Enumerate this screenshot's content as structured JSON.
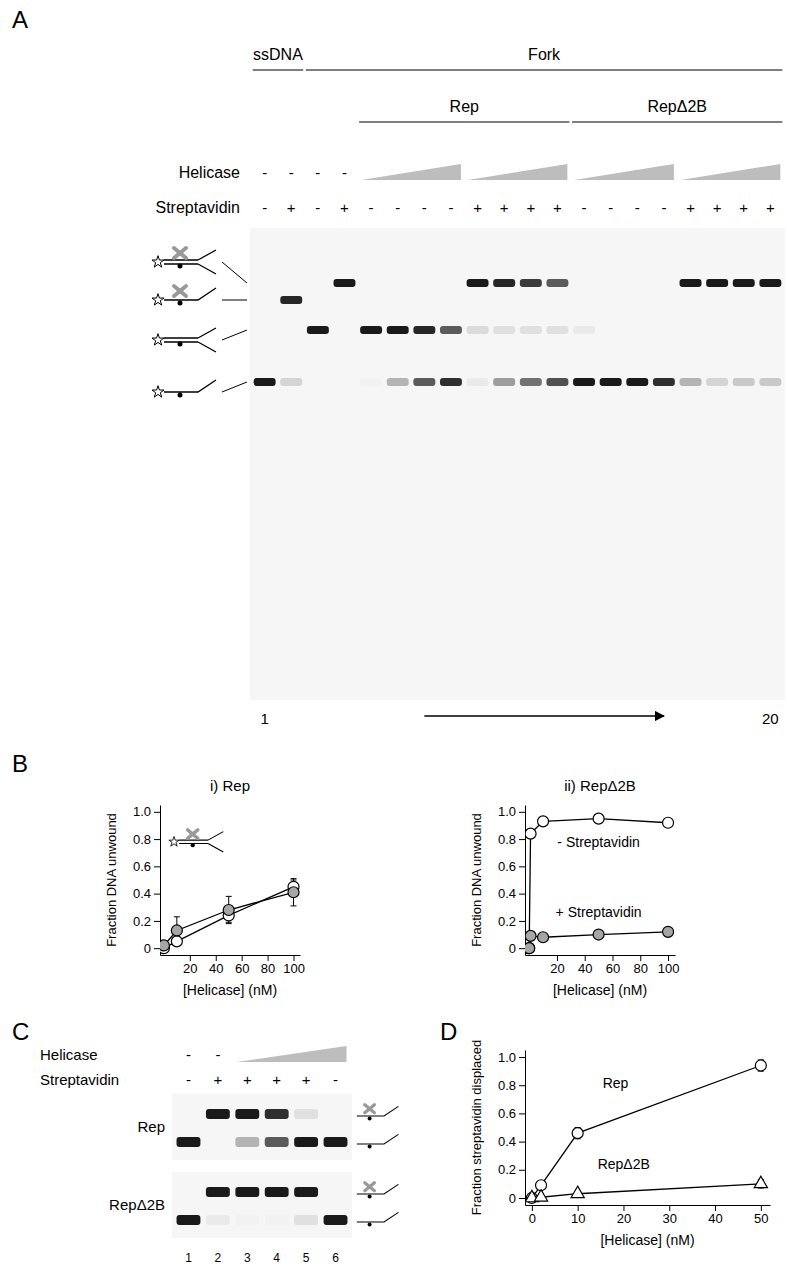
{
  "panel_labels": [
    "A",
    "B",
    "C",
    "D"
  ],
  "gel_a": {
    "headers": [
      {
        "text": "ssDNA",
        "lanes": [
          1,
          2
        ]
      },
      {
        "text": "Fork",
        "lanes": [
          3,
          20
        ]
      },
      {
        "text": "Rep",
        "lanes": [
          5,
          12
        ]
      },
      {
        "text": "RepΔ2B",
        "lanes": [
          13,
          20
        ]
      }
    ],
    "row_labels": [
      "Helicase",
      "Streptavidin"
    ],
    "helicase": [
      "-",
      "-",
      "-",
      "-"
    ],
    "helicase_ramps": [
      [
        5,
        8
      ],
      [
        9,
        12
      ],
      [
        13,
        16
      ],
      [
        17,
        20
      ]
    ],
    "streptavidin": [
      "-",
      "+",
      "-",
      "+",
      "-",
      "-",
      "-",
      "-",
      "+",
      "+",
      "+",
      "+",
      "-",
      "-",
      "-",
      "-",
      "+",
      "+",
      "+",
      "+"
    ],
    "bands": [
      [
        0,
        0,
        0,
        1
      ],
      [
        0,
        0.95,
        0,
        0.15
      ],
      [
        0,
        0,
        1,
        0
      ],
      [
        1,
        0,
        0,
        0
      ],
      [
        0,
        0,
        1,
        0.02
      ],
      [
        0,
        0,
        1,
        0.3
      ],
      [
        0,
        0,
        0.95,
        0.7
      ],
      [
        0,
        0,
        0.7,
        0.9
      ],
      [
        1,
        0,
        0.12,
        0.05
      ],
      [
        0.95,
        0,
        0.1,
        0.4
      ],
      [
        0.85,
        0,
        0.1,
        0.6
      ],
      [
        0.7,
        0,
        0.1,
        0.75
      ],
      [
        0,
        0,
        0.05,
        1
      ],
      [
        0,
        0,
        0,
        1
      ],
      [
        0,
        0,
        0,
        1
      ],
      [
        0,
        0,
        0,
        0.9
      ],
      [
        1,
        0,
        0,
        0.3
      ],
      [
        1,
        0,
        0,
        0.15
      ],
      [
        1,
        0,
        0,
        0.2
      ],
      [
        1,
        0,
        0,
        0.2
      ]
    ],
    "lane_numbers": [
      1,
      20
    ]
  },
  "gel_c": {
    "row_labels": [
      "Helicase",
      "Streptavidin"
    ],
    "helicase": [
      "-",
      "-"
    ],
    "helicase_ramp": [
      3,
      6
    ],
    "streptavidin": [
      "-",
      "+",
      "+",
      "+",
      "+",
      "-"
    ],
    "gels": [
      {
        "label": "Rep",
        "bands": [
          [
            0,
            1
          ],
          [
            1,
            0
          ],
          [
            1,
            0.3
          ],
          [
            0.9,
            0.7
          ],
          [
            0.1,
            1
          ],
          [
            0,
            1
          ]
        ]
      },
      {
        "label": "RepΔ2B",
        "bands": [
          [
            0,
            1
          ],
          [
            1,
            0.05
          ],
          [
            1,
            0.02
          ],
          [
            1,
            0.02
          ],
          [
            1,
            0.1
          ],
          [
            0,
            1
          ]
        ]
      }
    ],
    "lane_numbers": [
      1,
      2,
      3,
      4,
      5,
      6
    ]
  },
  "chart_data": [
    {
      "type": "line",
      "title": "i) Rep",
      "x_label": "[Helicase] (nM)",
      "y_label": "Fraction DNA unwound",
      "x": [
        0,
        10,
        50,
        100
      ],
      "xlim": [
        -3,
        105
      ],
      "xticks": [
        20,
        40,
        60,
        80,
        100
      ],
      "ylim": [
        -0.05,
        1.05
      ],
      "yticks": [
        0,
        0.2,
        0.4,
        0.6,
        0.8,
        {
          "value": 1,
          "label": "1.0"
        }
      ],
      "series": [
        {
          "color": "#ffffff",
          "marker": "circle",
          "values": [
            0,
            0.05,
            0.24,
            0.45
          ],
          "errors": [
            0,
            0.03,
            0.05,
            0.05
          ]
        },
        {
          "color": "#a6a6a6",
          "marker": "circle",
          "values": [
            0.02,
            0.13,
            0.28,
            0.41
          ],
          "errors": [
            0,
            0.1,
            0.1,
            0.1
          ]
        }
      ]
    },
    {
      "type": "line",
      "title": "ii) RepΔ2B",
      "x_label": "[Helicase] (nM)",
      "y_label": "Fraction DNA unwound",
      "x": [
        0,
        1,
        10,
        50,
        100
      ],
      "xlim": [
        -3,
        105
      ],
      "xticks": [
        20,
        40,
        60,
        80,
        100
      ],
      "ylim": [
        -0.05,
        1.05
      ],
      "yticks": [
        0,
        0.2,
        0.4,
        0.6,
        0.8,
        {
          "value": 1,
          "label": "1.0"
        }
      ],
      "series": [
        {
          "name": "- Streptavidin",
          "color": "#ffffff",
          "marker": "circle",
          "values": [
            0,
            0.84,
            0.93,
            0.95,
            0.92
          ],
          "errors": [
            0,
            0.02,
            0.02,
            0.02,
            0.02
          ]
        },
        {
          "name": "+ Streptavidin",
          "color": "#a6a6a6",
          "marker": "circle",
          "values": [
            0,
            0.09,
            0.08,
            0.1,
            0.12
          ],
          "errors": [
            0,
            0.01,
            0.01,
            0.01,
            0.02
          ]
        }
      ]
    },
    {
      "type": "line",
      "x_label": "[Helicase] (nM)",
      "y_label": "Fraction streptavidin displaced",
      "x": [
        0,
        2,
        10,
        50
      ],
      "xlim": [
        -1.5,
        52
      ],
      "xticks": [
        0,
        10,
        20,
        30,
        40,
        50
      ],
      "ylim": [
        -0.05,
        1.05
      ],
      "yticks": [
        0,
        0.2,
        0.4,
        0.6,
        0.8,
        {
          "value": 1,
          "label": "1.0"
        }
      ],
      "series": [
        {
          "name": "Rep",
          "color": "#ffffff",
          "marker": "circle",
          "values": [
            0,
            0.09,
            0.46,
            0.94
          ],
          "errors": [
            0,
            0.01,
            0.04,
            0.04
          ]
        },
        {
          "name": "RepΔ2B",
          "color": "#ffffff",
          "marker": "triangle",
          "values": [
            0,
            0.005,
            0.03,
            0.1
          ],
          "errors": [
            0,
            0.005,
            0.01,
            0.03
          ]
        }
      ]
    }
  ]
}
